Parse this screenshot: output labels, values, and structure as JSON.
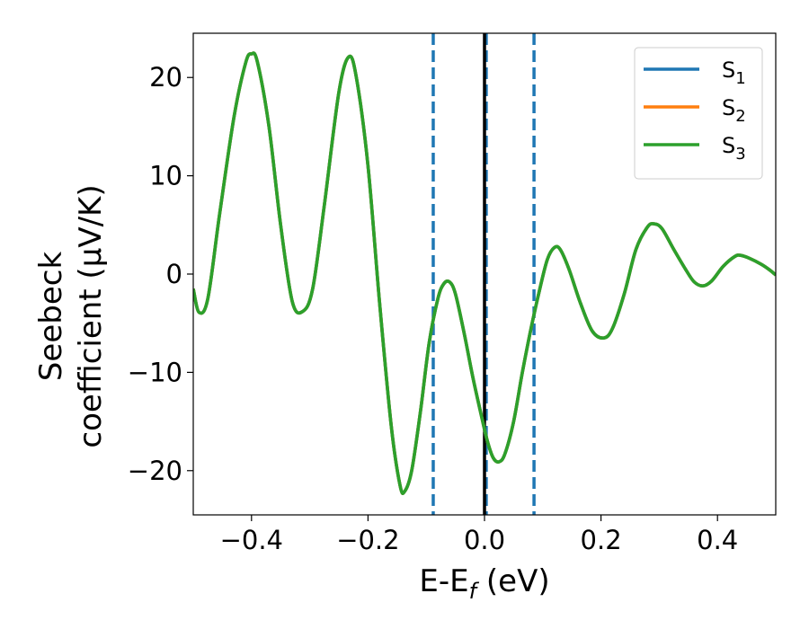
{
  "chart_data": {
    "type": "line",
    "title": "",
    "xlabel": {
      "main": "E-E",
      "sub": "f",
      "rest": " (eV)"
    },
    "ylabel": {
      "line1": "Seebeck",
      "line2": "coefficient  (μV/K)"
    },
    "xlim": [
      -0.5,
      0.5
    ],
    "ylim": [
      -24.5,
      24.5
    ],
    "xticks": [
      {
        "value": -0.4,
        "label": "−0.4"
      },
      {
        "value": -0.2,
        "label": "−0.2"
      },
      {
        "value": 0.0,
        "label": "0.0"
      },
      {
        "value": 0.2,
        "label": "0.2"
      },
      {
        "value": 0.4,
        "label": "0.4"
      }
    ],
    "yticks": [
      {
        "value": -20,
        "label": "−20"
      },
      {
        "value": -10,
        "label": "−10"
      },
      {
        "value": 0,
        "label": "0"
      },
      {
        "value": 10,
        "label": "10"
      },
      {
        "value": 20,
        "label": "20"
      }
    ],
    "grid": false,
    "legend_position": "top-right",
    "vlines": [
      {
        "x": -0.088,
        "style": "dashed",
        "color": "#1f77b4"
      },
      {
        "x": 0.003,
        "style": "dashed",
        "color": "#1f77b4"
      },
      {
        "x": 0.085,
        "style": "dashed",
        "color": "#1f77b4"
      },
      {
        "x": 0.0,
        "style": "solid",
        "color": "#000000"
      }
    ],
    "series": [
      {
        "name": "S",
        "sub": "1",
        "color": "#1f77b4"
      },
      {
        "name": "S",
        "sub": "2",
        "color": "#ff7f0e"
      },
      {
        "name": "S",
        "sub": "3",
        "color": "#2ca02c"
      }
    ],
    "curve": [
      [
        -0.5,
        -1.5
      ],
      [
        -0.49,
        -3.9
      ],
      [
        -0.475,
        -2.5
      ],
      [
        -0.455,
        6.0
      ],
      [
        -0.43,
        16.0
      ],
      [
        -0.41,
        21.5
      ],
      [
        -0.4,
        22.4
      ],
      [
        -0.39,
        21.6
      ],
      [
        -0.37,
        15.0
      ],
      [
        -0.35,
        5.0
      ],
      [
        -0.33,
        -2.8
      ],
      [
        -0.312,
        -3.8
      ],
      [
        -0.295,
        -1.5
      ],
      [
        -0.275,
        7.0
      ],
      [
        -0.25,
        18.5
      ],
      [
        -0.233,
        22.1
      ],
      [
        -0.22,
        20.0
      ],
      [
        -0.2,
        11.0
      ],
      [
        -0.18,
        -3.0
      ],
      [
        -0.16,
        -15.5
      ],
      [
        -0.145,
        -21.5
      ],
      [
        -0.137,
        -22.1
      ],
      [
        -0.125,
        -20.0
      ],
      [
        -0.11,
        -14.0
      ],
      [
        -0.095,
        -7.0
      ],
      [
        -0.08,
        -2.5
      ],
      [
        -0.07,
        -1.0
      ],
      [
        -0.06,
        -0.8
      ],
      [
        -0.05,
        -2.0
      ],
      [
        -0.035,
        -6.0
      ],
      [
        -0.02,
        -10.5
      ],
      [
        -0.005,
        -14.5
      ],
      [
        0.005,
        -17.0
      ],
      [
        0.015,
        -18.7
      ],
      [
        0.025,
        -19.1
      ],
      [
        0.035,
        -18.3
      ],
      [
        0.05,
        -15.0
      ],
      [
        0.065,
        -10.0
      ],
      [
        0.08,
        -5.5
      ],
      [
        0.095,
        -1.5
      ],
      [
        0.108,
        1.5
      ],
      [
        0.12,
        2.7
      ],
      [
        0.13,
        2.5
      ],
      [
        0.145,
        0.5
      ],
      [
        0.165,
        -3.0
      ],
      [
        0.185,
        -5.8
      ],
      [
        0.205,
        -6.5
      ],
      [
        0.22,
        -5.5
      ],
      [
        0.24,
        -2.0
      ],
      [
        0.26,
        2.5
      ],
      [
        0.28,
        4.8
      ],
      [
        0.292,
        5.1
      ],
      [
        0.305,
        4.6
      ],
      [
        0.325,
        2.5
      ],
      [
        0.345,
        0.5
      ],
      [
        0.36,
        -0.8
      ],
      [
        0.375,
        -1.2
      ],
      [
        0.39,
        -0.7
      ],
      [
        0.41,
        0.8
      ],
      [
        0.43,
        1.8
      ],
      [
        0.44,
        1.9
      ],
      [
        0.455,
        1.6
      ],
      [
        0.475,
        1.0
      ],
      [
        0.49,
        0.4
      ],
      [
        0.5,
        -0.1
      ]
    ]
  }
}
